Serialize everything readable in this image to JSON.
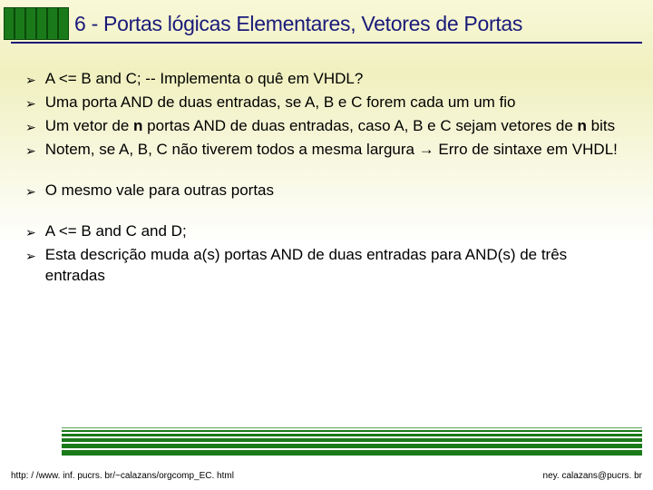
{
  "header": {
    "title": "6 - Portas lógicas Elementares, Vetores de Portas",
    "bar_count": 6,
    "bar_color": "#1a7a1a",
    "title_color": "#1a1a7a"
  },
  "groups": [
    {
      "items": [
        {
          "html": "A <= B and C; -- Implementa o quê em VHDL?"
        },
        {
          "html": "Uma porta AND de duas entradas, se A, B e C forem cada um um fio"
        },
        {
          "html": "Um vetor de <span class='bold'>n</span> portas AND de duas entradas, caso A, B e C sejam vetores de <span class='bold'>n</span> bits"
        },
        {
          "html": "Notem, se A, B, C não tiverem todos a mesma largura → Erro de sintaxe em VHDL!"
        }
      ]
    },
    {
      "items": [
        {
          "html": "O mesmo vale para outras portas"
        }
      ]
    },
    {
      "items": [
        {
          "html": "A <=  B and C and D;"
        },
        {
          "html": "Esta descrição muda a(s) portas AND de duas entradas para AND(s) de três entradas"
        }
      ]
    }
  ],
  "footer": {
    "left": "http: / /www. inf. pucrs. br/~calazans/orgcomp_EC. html",
    "right": "ney. calazans@pucrs. br",
    "stripe_color": "#1a7a1a"
  },
  "bullet_marker": "➢"
}
